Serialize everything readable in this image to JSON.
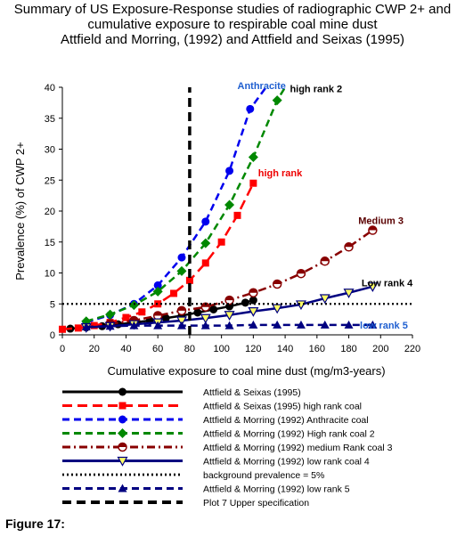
{
  "titles": [
    "Summary of US Exposure-Response studies of radiographic CWP 2+ and",
    "cumulative exposure to respirable coal mine dust",
    "Attfield and Morring, (1992) and Attfield and Seixas (1995)"
  ],
  "figure_caption": "Figure 17:",
  "chart_data": {
    "type": "line",
    "xlabel": "Cumulative exposure to coal mine dust (mg/m3-years)",
    "ylabel": "Prevalence (%) of CWP 2+",
    "xlim": [
      0,
      220
    ],
    "ylim": [
      0,
      40
    ],
    "x_ticks": [
      0,
      20,
      40,
      60,
      80,
      100,
      120,
      140,
      160,
      180,
      200,
      220
    ],
    "y_ticks": [
      0,
      5,
      10,
      15,
      20,
      25,
      30,
      35,
      40
    ],
    "grid": false,
    "legend_position": "below",
    "series": [
      {
        "name": "Attfield & Seixas (1995)",
        "color": "#000000",
        "dash": "solid",
        "marker": "circle",
        "x": [
          5,
          15,
          25,
          35,
          45,
          55,
          65,
          75,
          85,
          95,
          105,
          115,
          120
        ],
        "y": [
          1.0,
          1.2,
          1.4,
          1.7,
          2.0,
          2.3,
          2.7,
          3.1,
          3.6,
          4.1,
          4.6,
          5.2,
          5.6
        ]
      },
      {
        "name": "Attfield & Seixas (1995) high rank coal",
        "color": "#ff0000",
        "dash": "long",
        "marker": "square",
        "x": [
          0,
          10,
          20,
          30,
          40,
          50,
          60,
          70,
          80,
          90,
          100,
          110,
          120
        ],
        "y": [
          0.9,
          1.1,
          1.5,
          2.0,
          2.8,
          3.7,
          5.0,
          6.7,
          8.8,
          11.6,
          15.0,
          19.3,
          24.5
        ]
      },
      {
        "name": "Attfield & Morring (1992)  Anthracite coal",
        "color": "#0000ee",
        "dash": "dash",
        "marker": "circle",
        "x": [
          15,
          30,
          45,
          60,
          75,
          90,
          105,
          118,
          128
        ],
        "y": [
          2.0,
          3.2,
          5.0,
          8.0,
          12.5,
          18.3,
          26.5,
          36.5,
          40.0
        ]
      },
      {
        "name": "Attfield & Morring (1992) High rank coal 2",
        "color": "#008800",
        "dash": "dash",
        "marker": "diamond",
        "x": [
          15,
          30,
          45,
          60,
          75,
          90,
          105,
          120,
          135,
          140
        ],
        "y": [
          2.2,
          3.3,
          4.8,
          7.0,
          10.3,
          14.8,
          21.0,
          28.7,
          37.9,
          40.0
        ]
      },
      {
        "name": "Attfield & Morring (1992) medium Rank coal 3",
        "color": "#880000",
        "dash": "dashdot",
        "marker": "target",
        "x": [
          30,
          45,
          60,
          75,
          90,
          105,
          120,
          135,
          150,
          165,
          180,
          195
        ],
        "y": [
          1.8,
          2.3,
          3.1,
          3.9,
          4.5,
          5.6,
          6.8,
          8.2,
          9.9,
          11.9,
          14.2,
          16.9
        ]
      },
      {
        "name": "Attfield & Morring (1992)  low rank coal 4",
        "color": "#000080",
        "dash": "solid",
        "marker": "triangle-down",
        "x": [
          15,
          30,
          45,
          60,
          75,
          90,
          105,
          120,
          135,
          150,
          165,
          180,
          195
        ],
        "y": [
          1.2,
          1.4,
          1.7,
          2.0,
          2.3,
          2.7,
          3.2,
          3.8,
          4.3,
          4.9,
          5.9,
          6.8,
          7.8
        ]
      },
      {
        "name": "background prevalence = 5%",
        "color": "#000000",
        "dash": "dot",
        "marker": "none",
        "x": [
          0,
          220
        ],
        "y": [
          5,
          5
        ]
      },
      {
        "name": "Attfield & Morring (1992) low rank 5",
        "color": "#000080",
        "dash": "dash",
        "marker": "triangle-up",
        "x": [
          15,
          30,
          45,
          60,
          75,
          90,
          105,
          120,
          135,
          150,
          165,
          180,
          195
        ],
        "y": [
          1.3,
          1.4,
          1.5,
          1.5,
          1.5,
          1.5,
          1.5,
          1.6,
          1.6,
          1.6,
          1.6,
          1.6,
          1.6
        ]
      },
      {
        "name": "Plot 7 Upper specification",
        "color": "#000000",
        "dash": "longbold",
        "marker": "none",
        "x": [
          80,
          80
        ],
        "y": [
          0,
          40
        ]
      }
    ],
    "annotations": [
      {
        "text": "Anthracite",
        "color": "#1f5fd0",
        "x": 110,
        "y": 40.3
      },
      {
        "text": "high rank 2",
        "color": "#000000",
        "x": 143,
        "y": 39.8
      },
      {
        "text": "high rank",
        "color": "#ee0000",
        "x": 123,
        "y": 26.2
      },
      {
        "text": "Medium 3",
        "color": "#5a0000",
        "x": 186,
        "y": 18.5
      },
      {
        "text": "Low rank 4",
        "color": "#000000",
        "x": 188,
        "y": 8.4
      },
      {
        "text": "low rank 5",
        "color": "#1f5fd0",
        "x": 187,
        "y": 1.6
      }
    ]
  }
}
